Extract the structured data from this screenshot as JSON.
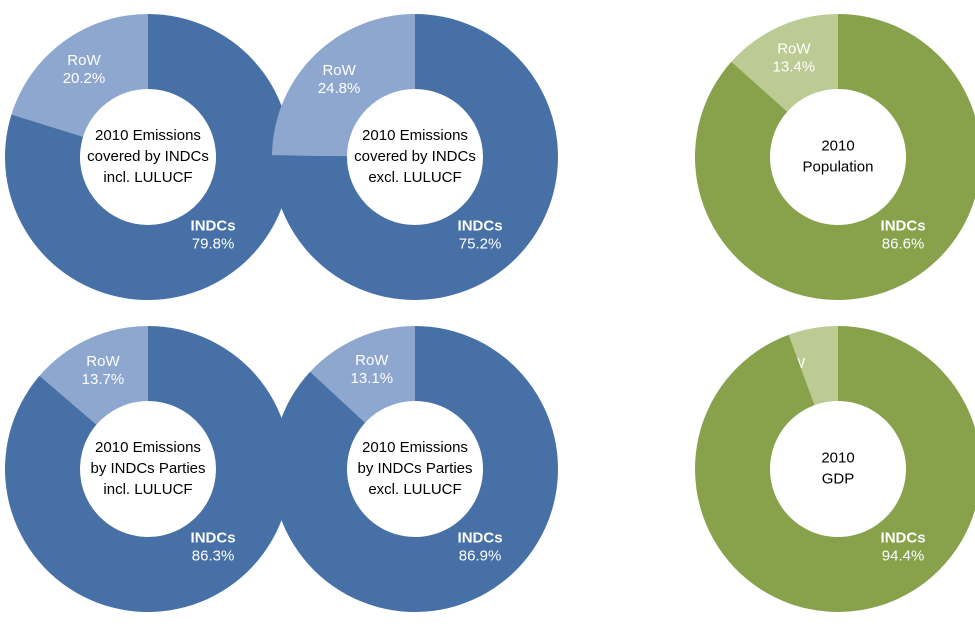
{
  "chart_data": [
    {
      "type": "pie",
      "title": [
        "2010 Emissions",
        "covered by INDCs",
        "incl. LULUCF"
      ],
      "categories": [
        "RoW",
        "INDCs"
      ],
      "values": [
        20.2,
        79.8
      ],
      "value_labels": [
        "20.2%",
        "79.8%"
      ],
      "colors": [
        "#8ea7cf",
        "#4670a6"
      ]
    },
    {
      "type": "pie",
      "title": [
        "2010 Emissions",
        "covered by INDCs",
        "excl. LULUCF"
      ],
      "categories": [
        "RoW",
        "INDCs"
      ],
      "values": [
        24.8,
        75.2
      ],
      "value_labels": [
        "24.8%",
        "75.2%"
      ],
      "colors": [
        "#8ea7cf",
        "#4670a6"
      ]
    },
    {
      "type": "pie",
      "title": [
        "2010",
        "Population"
      ],
      "categories": [
        "RoW",
        "INDCs"
      ],
      "values": [
        13.4,
        86.6
      ],
      "value_labels": [
        "13.4%",
        "86.6%"
      ],
      "colors": [
        "#bccb94",
        "#87a24b"
      ]
    },
    {
      "type": "pie",
      "title": [
        "2010 Emissions",
        "by INDCs Parties",
        "incl. LULUCF"
      ],
      "categories": [
        "RoW",
        "INDCs"
      ],
      "values": [
        13.7,
        86.3
      ],
      "value_labels": [
        "13.7%",
        "86.3%"
      ],
      "colors": [
        "#8ea7cf",
        "#4670a6"
      ]
    },
    {
      "type": "pie",
      "title": [
        "2010 Emissions",
        "by INDCs Parties",
        "excl. LULUCF"
      ],
      "categories": [
        "RoW",
        "INDCs"
      ],
      "values": [
        13.1,
        86.9
      ],
      "value_labels": [
        "13.1%",
        "86.9%"
      ],
      "colors": [
        "#8ea7cf",
        "#4670a6"
      ]
    },
    {
      "type": "pie",
      "title": [
        "2010",
        "GDP"
      ],
      "categories": [
        "RoW",
        "INDCs"
      ],
      "values": [
        5.6,
        94.4
      ],
      "value_labels": [
        "5.6%",
        "94.4%"
      ],
      "colors": [
        "#bccb94",
        "#87a24b"
      ]
    }
  ]
}
